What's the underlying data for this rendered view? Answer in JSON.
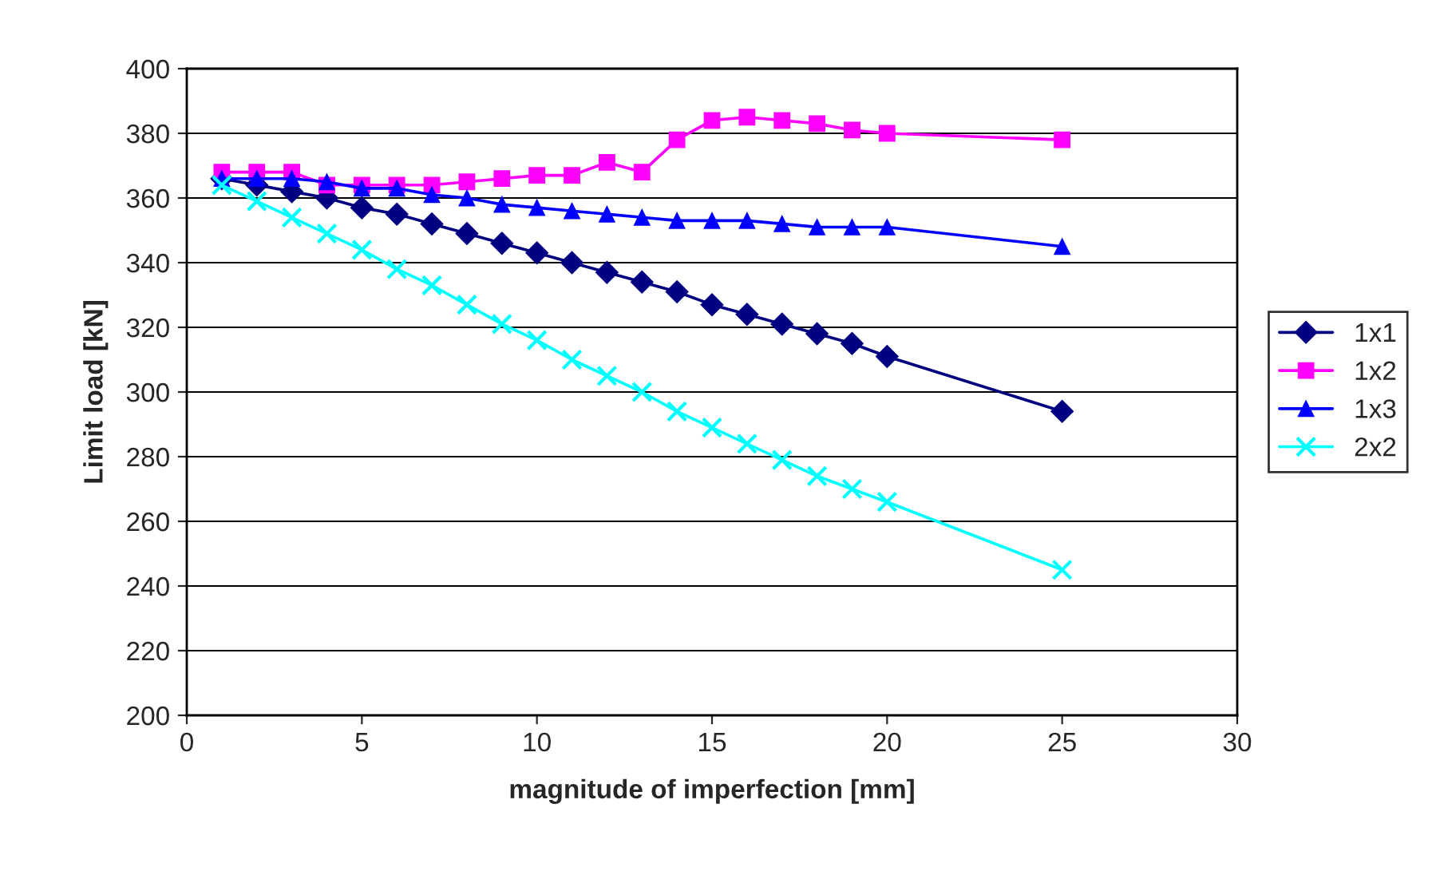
{
  "chart_data": {
    "type": "line",
    "xlabel": "magnitude of imperfection [mm]",
    "ylabel": "Limit load [kN]",
    "x": [
      1,
      2,
      3,
      4,
      5,
      6,
      7,
      8,
      9,
      10,
      11,
      12,
      13,
      14,
      15,
      16,
      17,
      18,
      19,
      20,
      25
    ],
    "series": [
      {
        "name": "1x1",
        "color": "#000080",
        "marker": "diamond",
        "values": [
          366,
          364,
          362,
          360,
          357,
          355,
          352,
          349,
          346,
          343,
          340,
          337,
          334,
          331,
          327,
          324,
          321,
          318,
          315,
          311,
          294
        ]
      },
      {
        "name": "1x2",
        "color": "#ff00ff",
        "marker": "square",
        "values": [
          368,
          368,
          368,
          364,
          364,
          364,
          364,
          365,
          366,
          367,
          367,
          371,
          368,
          378,
          384,
          385,
          384,
          383,
          381,
          380,
          378
        ]
      },
      {
        "name": "1x3",
        "color": "#0000ff",
        "marker": "triangle",
        "values": [
          366,
          366,
          366,
          365,
          363,
          363,
          361,
          360,
          358,
          357,
          356,
          355,
          354,
          353,
          353,
          353,
          352,
          351,
          351,
          351,
          345
        ]
      },
      {
        "name": "2x2",
        "color": "#00ffff",
        "marker": "cross",
        "values": [
          364,
          359,
          354,
          349,
          344,
          338,
          333,
          327,
          321,
          316,
          310,
          305,
          300,
          294,
          289,
          284,
          279,
          274,
          270,
          266,
          245
        ]
      }
    ],
    "xlim": [
      0,
      30
    ],
    "xticks": [
      0,
      5,
      10,
      15,
      20,
      25,
      30
    ],
    "ylim": [
      200,
      400
    ],
    "yticks": [
      200,
      220,
      240,
      260,
      280,
      300,
      320,
      340,
      360,
      380,
      400
    ],
    "grid": "y",
    "legend": "right"
  }
}
